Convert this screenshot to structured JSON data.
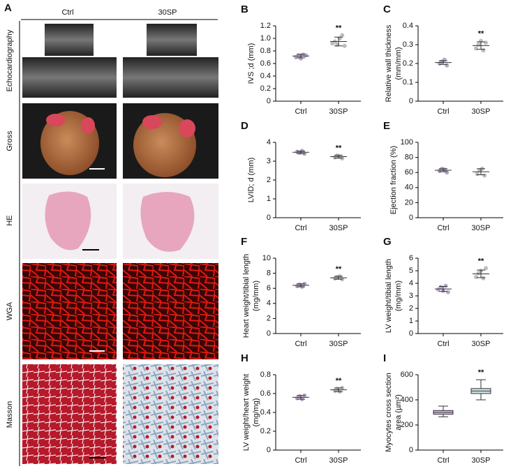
{
  "panel_a": {
    "letter": "A",
    "columns": [
      "Ctrl",
      "30SP"
    ],
    "rows": [
      "Echocardiography",
      "Gross",
      "HE",
      "WGA",
      "Masson"
    ]
  },
  "chart_data": [
    {
      "type": "dot",
      "letter": "B",
      "ylabel": [
        "IVS ;d (mm)"
      ],
      "categories": [
        "Ctrl",
        "30SP"
      ],
      "groups": [
        {
          "color": "#b9a6c9",
          "values": [
            0.7,
            0.72,
            0.68,
            0.74,
            0.73
          ],
          "mean": 0.72,
          "error": 0.03
        },
        {
          "color": "#bdbdbd",
          "values": [
            0.92,
            0.95,
            0.9,
            1.0,
            1.05,
            0.88
          ],
          "mean": 0.95,
          "error": 0.07
        }
      ],
      "annotation": "**",
      "ylim": [
        0,
        1.2
      ],
      "yticks": [
        0,
        0.2,
        0.4,
        0.6,
        0.8,
        {
          "value": 1,
          "label": "1.0"
        },
        1.2
      ]
    },
    {
      "type": "dot",
      "letter": "C",
      "ylabel": [
        "Relative wall thickness",
        "(mm/mm)"
      ],
      "categories": [
        "Ctrl",
        "30SP"
      ],
      "groups": [
        {
          "color": "#b9a6c9",
          "values": [
            0.2,
            0.21,
            0.22,
            0.19
          ],
          "mean": 0.205,
          "error": 0.01
        },
        {
          "color": "#bdbdbd",
          "values": [
            0.28,
            0.3,
            0.32,
            0.27,
            0.31
          ],
          "mean": 0.295,
          "error": 0.02
        }
      ],
      "annotation": "**",
      "ylim": [
        0,
        0.4
      ],
      "yticks": [
        0,
        0.1,
        0.2,
        0.3,
        0.4
      ]
    },
    {
      "type": "dot",
      "letter": "D",
      "ylabel": [
        "LVID; d (mm)"
      ],
      "categories": [
        "Ctrl",
        "30SP"
      ],
      "groups": [
        {
          "color": "#b9a6c9",
          "values": [
            3.5,
            3.45,
            3.55,
            3.4
          ],
          "mean": 3.47,
          "error": 0.07
        },
        {
          "color": "#bdbdbd",
          "values": [
            3.2,
            3.3,
            3.25,
            3.15
          ],
          "mean": 3.24,
          "error": 0.08
        }
      ],
      "annotation": "**",
      "ylim": [
        0,
        4
      ],
      "yticks": [
        0,
        1,
        2,
        3,
        4
      ]
    },
    {
      "type": "dot",
      "letter": "E",
      "ylabel": [
        "Ejection fraction (%)"
      ],
      "categories": [
        "Ctrl",
        "30SP"
      ],
      "groups": [
        {
          "color": "#b9a6c9",
          "values": [
            62,
            65,
            64,
            60
          ],
          "mean": 63,
          "error": 2
        },
        {
          "color": "#bdbdbd",
          "values": [
            58,
            63,
            65,
            56
          ],
          "mean": 61,
          "error": 4
        }
      ],
      "ylim": [
        0,
        100
      ],
      "yticks": [
        0,
        20,
        40,
        60,
        80,
        100
      ]
    },
    {
      "type": "dot",
      "letter": "F",
      "ylabel": [
        "Heart weight/tibial length",
        "(mg/mm)"
      ],
      "categories": [
        "Ctrl",
        "30SP"
      ],
      "groups": [
        {
          "color": "#b9a6c9",
          "values": [
            6.3,
            6.5,
            6.2,
            6.6
          ],
          "mean": 6.4,
          "error": 0.2
        },
        {
          "color": "#bdbdbd",
          "values": [
            7.3,
            7.5,
            7.6,
            7.2
          ],
          "mean": 7.4,
          "error": 0.2
        }
      ],
      "annotation": "**",
      "ylim": [
        0,
        10
      ],
      "yticks": [
        0,
        2,
        4,
        6,
        8,
        10
      ]
    },
    {
      "type": "dot",
      "letter": "G",
      "ylabel": [
        "LV weight/tibial length",
        "(mg/mm)"
      ],
      "categories": [
        "Ctrl",
        "30SP"
      ],
      "groups": [
        {
          "color": "#b9a6c9",
          "values": [
            3.5,
            3.7,
            3.4,
            3.8,
            3.3
          ],
          "mean": 3.55,
          "error": 0.2
        },
        {
          "color": "#bdbdbd",
          "values": [
            4.5,
            4.8,
            5.0,
            4.4,
            5.2
          ],
          "mean": 4.75,
          "error": 0.3
        }
      ],
      "annotation": "**",
      "ylim": [
        0,
        6
      ],
      "yticks": [
        0,
        1,
        2,
        3,
        4,
        5,
        6
      ]
    },
    {
      "type": "dot",
      "letter": "H",
      "ylabel": [
        "LV weight/heart weight",
        "(mg/mg)"
      ],
      "categories": [
        "Ctrl",
        "30SP"
      ],
      "groups": [
        {
          "color": "#b9a6c9",
          "values": [
            0.55,
            0.57,
            0.54,
            0.58
          ],
          "mean": 0.56,
          "error": 0.02
        },
        {
          "color": "#bdbdbd",
          "values": [
            0.63,
            0.65,
            0.62,
            0.66
          ],
          "mean": 0.64,
          "error": 0.02
        }
      ],
      "annotation": "**",
      "ylim": [
        0,
        0.8
      ],
      "yticks": [
        0,
        0.2,
        0.4,
        0.6,
        0.8
      ]
    },
    {
      "type": "box",
      "letter": "I",
      "ylabel": [
        "Myocytes cross section",
        "area (µm²)"
      ],
      "categories": [
        "Ctrl",
        "30SP"
      ],
      "groups": [
        {
          "color": "#dcb6ea",
          "min": 265,
          "q1": 285,
          "median": 300,
          "q3": 315,
          "max": 350
        },
        {
          "color": "#cde3e3",
          "min": 400,
          "q1": 450,
          "median": 470,
          "q3": 490,
          "max": 560
        }
      ],
      "annotation": "**",
      "ylim": [
        0,
        600
      ],
      "yticks": [
        0,
        200,
        400,
        600
      ]
    }
  ]
}
